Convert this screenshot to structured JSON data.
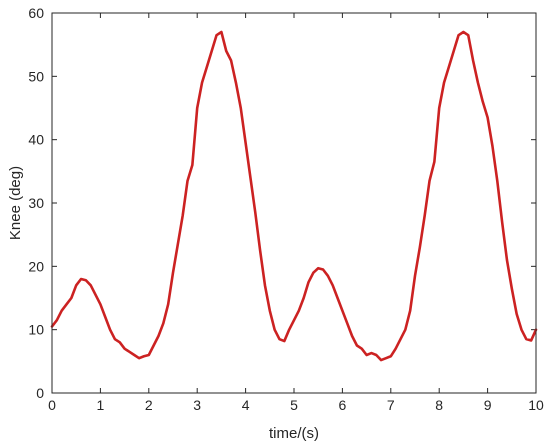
{
  "chart_data": {
    "type": "line",
    "title": "",
    "xlabel": "time/(s)",
    "ylabel": "Knee (deg)",
    "xlim": [
      0,
      10
    ],
    "ylim": [
      0,
      60
    ],
    "xticks": [
      "0",
      "1",
      "2",
      "3",
      "4",
      "5",
      "6",
      "7",
      "8",
      "9",
      "10"
    ],
    "yticks": [
      "0",
      "10",
      "20",
      "30",
      "40",
      "50",
      "60"
    ],
    "grid": false,
    "box": true,
    "series": [
      {
        "name": "",
        "color": "#cc2222",
        "x": [
          0,
          0.1,
          0.2,
          0.3,
          0.4,
          0.5,
          0.6,
          0.7,
          0.8,
          0.9,
          1.0,
          1.1,
          1.2,
          1.3,
          1.4,
          1.5,
          1.6,
          1.7,
          1.8,
          1.9,
          2.0,
          2.1,
          2.2,
          2.3,
          2.4,
          2.5,
          2.6,
          2.7,
          2.8,
          2.9,
          3.0,
          3.1,
          3.2,
          3.3,
          3.4,
          3.5,
          3.6,
          3.7,
          3.8,
          3.9,
          4.0,
          4.1,
          4.2,
          4.3,
          4.4,
          4.5,
          4.6,
          4.7,
          4.8,
          4.9,
          5.0,
          5.1,
          5.2,
          5.3,
          5.4,
          5.5,
          5.6,
          5.7,
          5.8,
          5.9,
          6.0,
          6.1,
          6.2,
          6.3,
          6.4,
          6.5,
          6.6,
          6.7,
          6.8,
          6.9,
          7.0,
          7.1,
          7.2,
          7.3,
          7.4,
          7.5,
          7.6,
          7.7,
          7.8,
          7.9,
          8.0,
          8.1,
          8.2,
          8.3,
          8.4,
          8.5,
          8.6,
          8.7,
          8.8,
          8.9,
          9.0,
          9.1,
          9.2,
          9.3,
          9.4,
          9.5,
          9.6,
          9.7,
          9.8,
          9.9,
          10.0
        ],
        "y": [
          10.5,
          11.5,
          13.0,
          14.0,
          15.0,
          17.0,
          18.0,
          17.8,
          17.0,
          15.5,
          14.0,
          12.0,
          10.0,
          8.5,
          8.0,
          7.0,
          6.5,
          6.0,
          5.5,
          5.8,
          6.0,
          7.5,
          9.0,
          11.0,
          14.0,
          19.0,
          23.5,
          28.0,
          33.5,
          36.0,
          45.0,
          49.0,
          51.5,
          54.0,
          56.5,
          57.0,
          54.0,
          52.5,
          49.0,
          45.0,
          39.5,
          34.0,
          28.5,
          22.5,
          17.0,
          13.0,
          10.0,
          8.5,
          8.2,
          10.0,
          11.5,
          13.0,
          15.0,
          17.5,
          19.0,
          19.7,
          19.5,
          18.5,
          17.0,
          15.0,
          13.0,
          11.0,
          9.0,
          7.5,
          7.0,
          6.0,
          6.3,
          6.0,
          5.2,
          5.5,
          5.8,
          7.0,
          8.5,
          10.0,
          13.0,
          18.5,
          23.0,
          28.0,
          33.5,
          36.5,
          45.0,
          49.0,
          51.5,
          54.0,
          56.5,
          57.0,
          56.5,
          52.5,
          49.0,
          46.0,
          43.5,
          39.0,
          33.5,
          27.0,
          21.0,
          16.5,
          12.5,
          10.0,
          8.5,
          8.3,
          10.0
        ]
      }
    ]
  }
}
